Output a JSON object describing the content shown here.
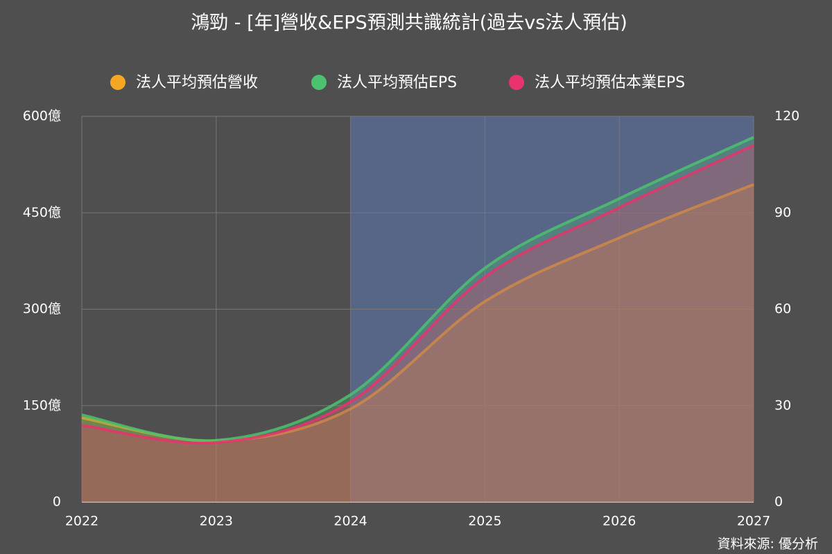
{
  "chart_data": {
    "type": "area",
    "title": "鴻勁 - [年]營收&EPS預測共識統計(過去vs法人預估)",
    "source": "資料來源: 優分析",
    "x": [
      2022,
      2023,
      2024,
      2025,
      2026,
      2027
    ],
    "xlim": [
      2022,
      2027
    ],
    "xticks": [
      2022,
      2023,
      2024,
      2025,
      2026,
      2027
    ],
    "ylim": [
      0,
      600
    ],
    "yticks": [
      0,
      {
        "value": 150,
        "label": "150億"
      },
      {
        "value": 300,
        "label": "300億"
      },
      {
        "value": 450,
        "label": "450億"
      },
      {
        "value": 600,
        "label": "600億"
      }
    ],
    "y2lim": [
      0,
      120
    ],
    "y2ticks": [
      0,
      30,
      60,
      90,
      120
    ],
    "highlight_range": [
      2024,
      2027
    ],
    "grid": true,
    "legend": "top",
    "series": [
      {
        "name": "法人平均預估營收",
        "color": "#f5a623",
        "values": [
          131,
          95,
          145,
          312,
          411,
          494
        ]
      },
      {
        "name": "法人平均預估EPS",
        "color": "#4cc16e",
        "axis": "y2",
        "values": [
          27.1,
          19.2,
          33.4,
          72.8,
          94.4,
          113.5
        ]
      },
      {
        "name": "法人平均預估本業EPS",
        "color": "#e8336f",
        "axis": "y2",
        "values": [
          23.9,
          18.5,
          31.2,
          70.0,
          91.6,
          111.0
        ]
      }
    ]
  }
}
